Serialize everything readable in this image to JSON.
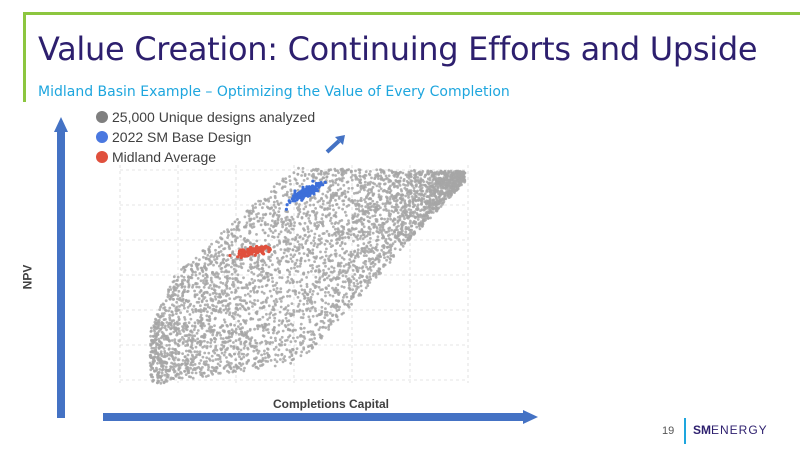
{
  "slide": {
    "title": "Value Creation: Continuing Efforts and Upside",
    "subtitle": "Midland Basin Example – Optimizing the Value of Every Completion",
    "page_number": "19",
    "logo": {
      "sm": "SM",
      "energy": "ENERGY"
    }
  },
  "colors": {
    "title": "#2d1f6e",
    "subtitle": "#1ea6de",
    "accent": "#8cc63f",
    "axis_arrow": "#4472c4",
    "gray_series": "#a6a6a6",
    "blue_series": "#3d6fd9",
    "red_series": "#e0503d"
  },
  "chart_data": {
    "type": "scatter",
    "xlabel": "Completions Capital",
    "ylabel": "NPV",
    "grid": true,
    "legend_position": "top-left",
    "series": [
      {
        "name": "25,000 Unique designs analyzed",
        "color": "#a6a6a6",
        "shape": "dense point cloud"
      },
      {
        "name": "2022 SM Base Design",
        "color": "#3d6fd9",
        "shape": "small cluster"
      },
      {
        "name": "Midland Average",
        "color": "#e0503d",
        "shape": "small cluster"
      }
    ],
    "annotations": [
      {
        "type": "arrow",
        "direction": "up-right"
      }
    ]
  }
}
